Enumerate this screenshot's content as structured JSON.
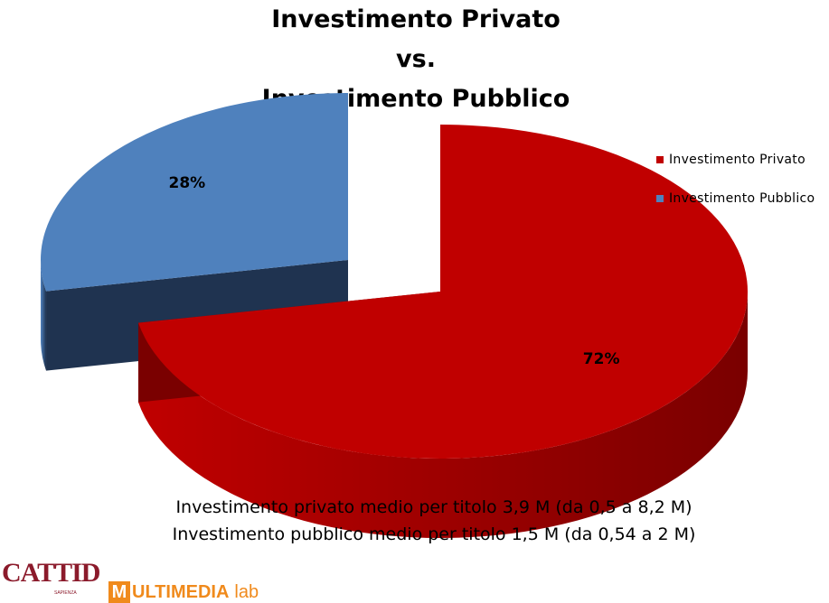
{
  "chart_data": {
    "type": "pie",
    "title_lines": [
      "Investimento Privato",
      "vs.",
      "Investimento Pubblico"
    ],
    "slices": [
      {
        "name": "Investimento Privato",
        "value": 72,
        "label": "72%",
        "color": "#c00000",
        "side_color": "#7a0000"
      },
      {
        "name": "Investimento Pubblico",
        "value": 28,
        "label": "28%",
        "color": "#4f81bd",
        "side_color": "#1f3350"
      }
    ],
    "legend_position": "top-right",
    "three_d": true,
    "exploded": true
  },
  "notes": [
    "Investimento privato medio per titolo 3,9 M (da 0,5 a 8,2 M)",
    "Investimento pubblico medio per titolo 1,5 M (da 0,54 a 2 M)"
  ],
  "logos": {
    "cattid": "CATTID",
    "cattid_sub": "SAPIENZA",
    "multimedia_m": "M",
    "multimedia_rest": "ULTIMEDIA",
    "multimedia_lab": "lab"
  }
}
